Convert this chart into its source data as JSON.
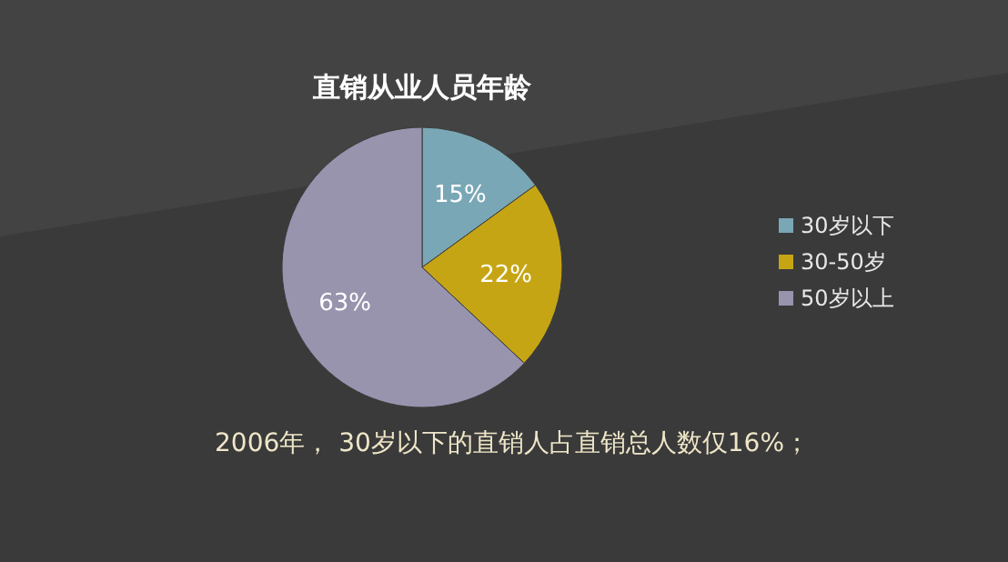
{
  "chart_data": {
    "type": "pie",
    "title": "直销从业人员年龄",
    "categories": [
      "30岁以下",
      "30-50岁",
      "50岁以上"
    ],
    "values": [
      15,
      22,
      63
    ],
    "value_labels": [
      "15%",
      "22%",
      "63%"
    ],
    "colors": [
      "#7aa7b5",
      "#c6a514",
      "#9894ae"
    ],
    "legend": "right",
    "annotations": [
      "2006年， 30岁以下的直销人占直销总人数仅16%；"
    ]
  }
}
